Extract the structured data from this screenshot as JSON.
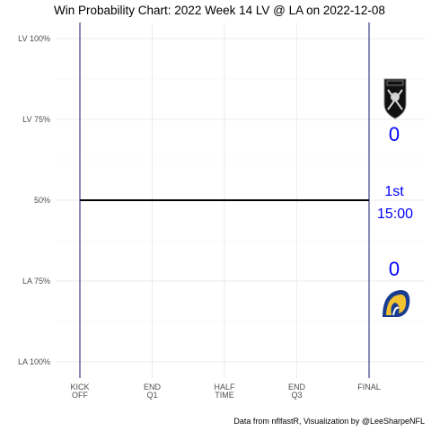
{
  "chart_data": {
    "type": "line",
    "title": "Win Probability Chart: 2022 Week 14 LV @ LA on 2022-12-08",
    "caption": "Data from nflfastR, Visualization by @LeeSharpeNFL",
    "y_ticks": [
      {
        "value": 1.0,
        "label": "LV 100%"
      },
      {
        "value": 0.75,
        "label": "LV 75%"
      },
      {
        "value": 0.5,
        "label": "50%"
      },
      {
        "value": 0.25,
        "label": "LA 75%"
      },
      {
        "value": 0.0,
        "label": "LA 100%"
      }
    ],
    "x_ticks": [
      {
        "value": 0,
        "label": [
          "KICK",
          "OFF"
        ]
      },
      {
        "value": 900,
        "label": [
          "END",
          "Q1"
        ]
      },
      {
        "value": 1800,
        "label": [
          "HALF",
          "TIME"
        ]
      },
      {
        "value": 2700,
        "label": [
          "END",
          "Q3"
        ]
      },
      {
        "value": 3600,
        "label": [
          "FINAL"
        ]
      }
    ],
    "xlim": [
      0,
      3600
    ],
    "ylim": [
      0,
      1
    ],
    "grid": true,
    "series": [
      {
        "x": [
          0,
          3600
        ],
        "y": [
          0.5,
          0.5
        ]
      }
    ],
    "teams": {
      "away": {
        "abbr": "LV",
        "score": "0",
        "logo": "raiders-shield-logo"
      },
      "home": {
        "abbr": "LA",
        "score": "0",
        "logo": "rams-horn-logo"
      }
    },
    "game_clock": {
      "quarter": "1st",
      "time": "15:00"
    },
    "colors": {
      "score": "#0000ff",
      "bounds": "#191970",
      "line": "#000000",
      "grid": "#ebebeb"
    }
  }
}
